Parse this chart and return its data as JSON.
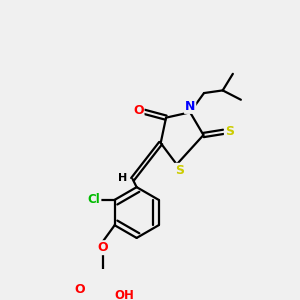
{
  "bg_color": "#f0f0f0",
  "bond_color": "#000000",
  "atom_colors": {
    "O": "#ff0000",
    "N": "#0000ff",
    "S": "#cccc00",
    "Cl": "#00bb00",
    "H": "#000000",
    "C": "#000000"
  },
  "figsize": [
    3.0,
    3.0
  ],
  "dpi": 100
}
